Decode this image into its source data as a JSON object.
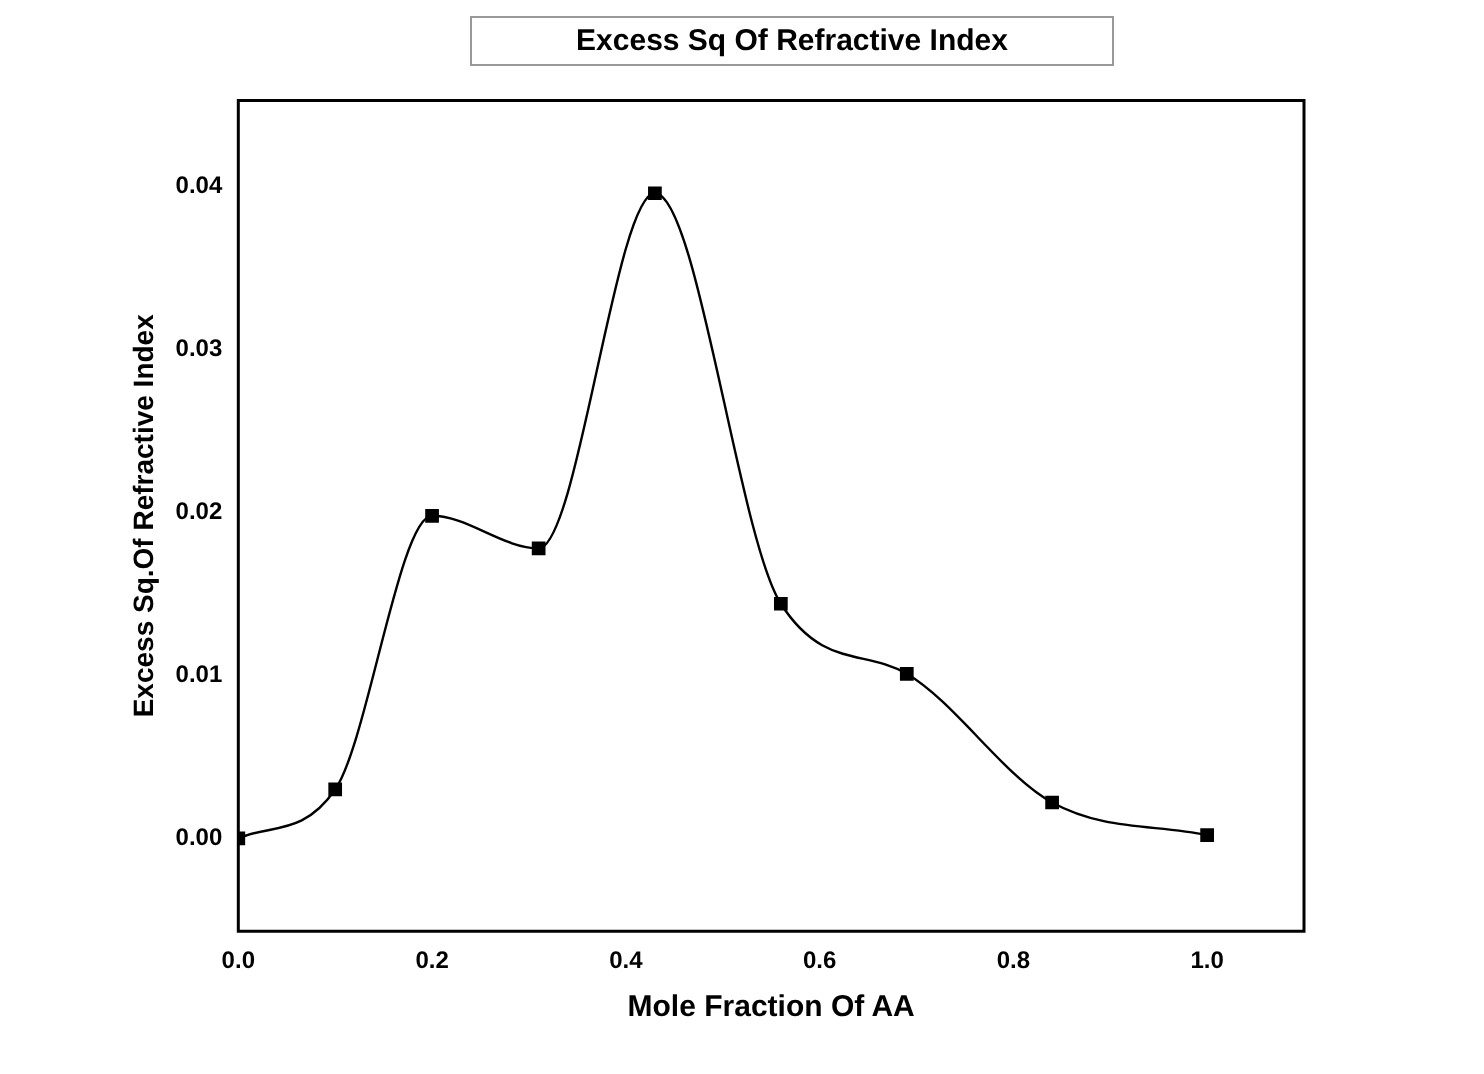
{
  "chart_data": {
    "type": "line",
    "title": "Excess Sq Of Refractive Index",
    "xlabel": "Mole Fraction Of AA",
    "ylabel": "Excess Sq.Of Refractive Index",
    "x": [
      0,
      0.1,
      0.2,
      0.31,
      0.43,
      0.56,
      0.69,
      0.84,
      1.0
    ],
    "values": [
      0,
      0.003,
      0.0198,
      0.0178,
      0.0396,
      0.0144,
      0.0101,
      0.0022,
      0.0002
    ],
    "color": "#000000",
    "marker": "square",
    "line_style": "solid",
    "grid": false,
    "legend": false,
    "xlim": [
      0,
      1.1
    ],
    "xticks": [
      {
        "value": 0,
        "label": "0.0"
      },
      0.2,
      0.4,
      0.6,
      0.8,
      {
        "value": 1,
        "label": "1.0"
      }
    ],
    "ylim": [
      -0.0057,
      0.0453
    ],
    "yticks": [
      {
        "value": 0,
        "label": "0.00"
      },
      0.01,
      0.02,
      0.03,
      0.04
    ]
  }
}
